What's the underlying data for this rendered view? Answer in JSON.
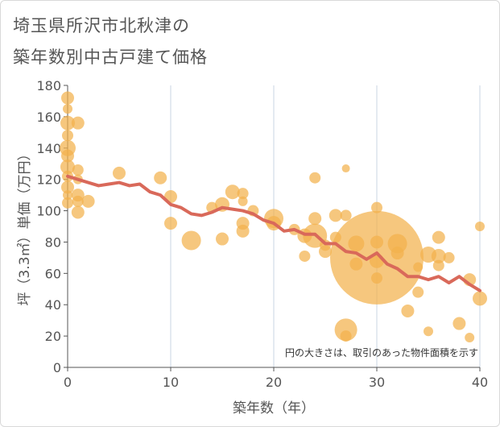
{
  "title_lines": [
    "埼玉県所沢市北秋津の",
    "築年数別中古戸建て価格"
  ],
  "chart_data": {
    "type": "scatter",
    "xlabel": "築年数（年）",
    "ylabel": "坪（3.3㎡）単価（万円）",
    "xlim": [
      0,
      40
    ],
    "ylim": [
      0,
      180
    ],
    "x_ticks": [
      "0",
      "10",
      "20",
      "30",
      "40"
    ],
    "y_ticks": [
      "0",
      "20",
      "40",
      "60",
      "80",
      "100",
      "120",
      "140",
      "160",
      "180"
    ],
    "grid": "vertical",
    "note": "円の大きさは、取引のあった物件面積を示す",
    "colors": {
      "bubble": "#f2b24c",
      "line": "#d9695a",
      "grid": "#c8d4e3",
      "axis": "#555555"
    },
    "trend_line": {
      "x": [
        0,
        1,
        2,
        3,
        4,
        5,
        6,
        7,
        8,
        9,
        10,
        11,
        12,
        13,
        14,
        15,
        16,
        17,
        18,
        19,
        20,
        21,
        22,
        23,
        24,
        25,
        26,
        27,
        28,
        29,
        30,
        31,
        32,
        33,
        34,
        35,
        36,
        37,
        38,
        39,
        40
      ],
      "y": [
        122,
        120,
        118,
        116,
        117,
        118,
        116,
        117,
        112,
        110,
        104,
        102,
        98,
        97,
        99,
        102,
        101,
        100,
        98,
        94,
        92,
        87,
        88,
        85,
        85,
        79,
        79,
        74,
        73,
        69,
        73,
        66,
        63,
        58,
        58,
        56,
        58,
        54,
        58,
        53,
        49
      ]
    },
    "bubbles": [
      {
        "x": 0,
        "y": 172,
        "r": 8
      },
      {
        "x": 0,
        "y": 165,
        "r": 6
      },
      {
        "x": 0,
        "y": 156,
        "r": 9
      },
      {
        "x": 0,
        "y": 148,
        "r": 7
      },
      {
        "x": 0,
        "y": 140,
        "r": 10
      },
      {
        "x": 0,
        "y": 135,
        "r": 8
      },
      {
        "x": 0,
        "y": 128,
        "r": 9
      },
      {
        "x": 0,
        "y": 122,
        "r": 7
      },
      {
        "x": 0,
        "y": 115,
        "r": 8
      },
      {
        "x": 0,
        "y": 110,
        "r": 6
      },
      {
        "x": 0,
        "y": 105,
        "r": 7
      },
      {
        "x": 1,
        "y": 156,
        "r": 8
      },
      {
        "x": 1,
        "y": 126,
        "r": 7
      },
      {
        "x": 1,
        "y": 120,
        "r": 6
      },
      {
        "x": 1,
        "y": 110,
        "r": 8
      },
      {
        "x": 1,
        "y": 106,
        "r": 7
      },
      {
        "x": 1,
        "y": 99,
        "r": 8
      },
      {
        "x": 2,
        "y": 106,
        "r": 8
      },
      {
        "x": 5,
        "y": 124,
        "r": 8
      },
      {
        "x": 9,
        "y": 121,
        "r": 8
      },
      {
        "x": 10,
        "y": 109,
        "r": 8
      },
      {
        "x": 10,
        "y": 92,
        "r": 8
      },
      {
        "x": 12,
        "y": 81,
        "r": 12
      },
      {
        "x": 14,
        "y": 102,
        "r": 7
      },
      {
        "x": 15,
        "y": 104,
        "r": 9
      },
      {
        "x": 15,
        "y": 82,
        "r": 8
      },
      {
        "x": 16,
        "y": 112,
        "r": 9
      },
      {
        "x": 17,
        "y": 111,
        "r": 7
      },
      {
        "x": 17,
        "y": 106,
        "r": 6
      },
      {
        "x": 17,
        "y": 92,
        "r": 8
      },
      {
        "x": 17,
        "y": 87,
        "r": 8
      },
      {
        "x": 18,
        "y": 100,
        "r": 7
      },
      {
        "x": 20,
        "y": 95,
        "r": 12
      },
      {
        "x": 20,
        "y": 92,
        "r": 9
      },
      {
        "x": 22,
        "y": 88,
        "r": 7
      },
      {
        "x": 23,
        "y": 84,
        "r": 9
      },
      {
        "x": 23,
        "y": 71,
        "r": 7
      },
      {
        "x": 24,
        "y": 121,
        "r": 7
      },
      {
        "x": 24,
        "y": 95,
        "r": 8
      },
      {
        "x": 24,
        "y": 84,
        "r": 15
      },
      {
        "x": 25,
        "y": 74,
        "r": 8
      },
      {
        "x": 25,
        "y": 78,
        "r": 7
      },
      {
        "x": 26,
        "y": 97,
        "r": 8
      },
      {
        "x": 26,
        "y": 83,
        "r": 7
      },
      {
        "x": 27,
        "y": 127,
        "r": 5
      },
      {
        "x": 27,
        "y": 97,
        "r": 7
      },
      {
        "x": 27,
        "y": 24,
        "r": 14
      },
      {
        "x": 27,
        "y": 20,
        "r": 7
      },
      {
        "x": 28,
        "y": 79,
        "r": 10
      },
      {
        "x": 28,
        "y": 66,
        "r": 8
      },
      {
        "x": 30,
        "y": 102,
        "r": 7
      },
      {
        "x": 30,
        "y": 80,
        "r": 8
      },
      {
        "x": 30,
        "y": 68,
        "r": 9
      },
      {
        "x": 30,
        "y": 57,
        "r": 7
      },
      {
        "x": 30,
        "y": 70,
        "r": 58
      },
      {
        "x": 32,
        "y": 79,
        "r": 12
      },
      {
        "x": 32,
        "y": 73,
        "r": 8
      },
      {
        "x": 33,
        "y": 36,
        "r": 8
      },
      {
        "x": 34,
        "y": 48,
        "r": 7
      },
      {
        "x": 34,
        "y": 64,
        "r": 6
      },
      {
        "x": 35,
        "y": 72,
        "r": 10
      },
      {
        "x": 35,
        "y": 23,
        "r": 6
      },
      {
        "x": 36,
        "y": 83,
        "r": 8
      },
      {
        "x": 36,
        "y": 71,
        "r": 9
      },
      {
        "x": 36,
        "y": 65,
        "r": 7
      },
      {
        "x": 37,
        "y": 70,
        "r": 7
      },
      {
        "x": 38,
        "y": 28,
        "r": 8
      },
      {
        "x": 39,
        "y": 56,
        "r": 8
      },
      {
        "x": 39,
        "y": 19,
        "r": 6
      },
      {
        "x": 40,
        "y": 90,
        "r": 6
      },
      {
        "x": 40,
        "y": 44,
        "r": 9
      }
    ]
  }
}
